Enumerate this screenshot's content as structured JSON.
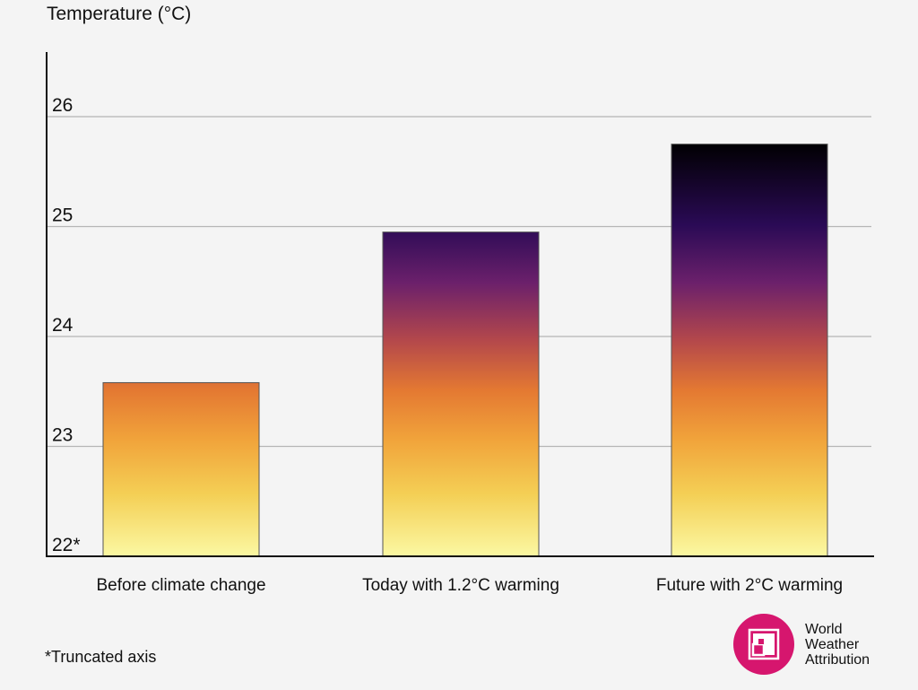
{
  "chart_data": {
    "type": "bar",
    "ylabel": "Temperature (°C)",
    "categories": [
      "Before climate change",
      "Today with 1.2°C warming",
      "Future with 2°C warming"
    ],
    "values": [
      23.58,
      24.95,
      25.75
    ],
    "ylim": [
      22,
      26.5
    ],
    "yticks": [
      22,
      23,
      24,
      25,
      26
    ],
    "ytick_labels": [
      "22*",
      "23",
      "24",
      "25",
      "26"
    ],
    "grid": true,
    "colors": {
      "gradient_low": "#fbf8a3",
      "gradient_mid1": "#f1a43b",
      "gradient_mid2": "#e47932",
      "gradient_mid3": "#b4484b",
      "gradient_mid4": "#6b206b",
      "gradient_mid5": "#2a0a55",
      "gradient_high": "#000000",
      "gridline": "#b5b5b5",
      "axis": "#111111"
    }
  },
  "footnote": "*Truncated axis",
  "logo": {
    "line1": "World",
    "line2": "Weather",
    "line3": "Attribution",
    "color": "#d6166e"
  }
}
